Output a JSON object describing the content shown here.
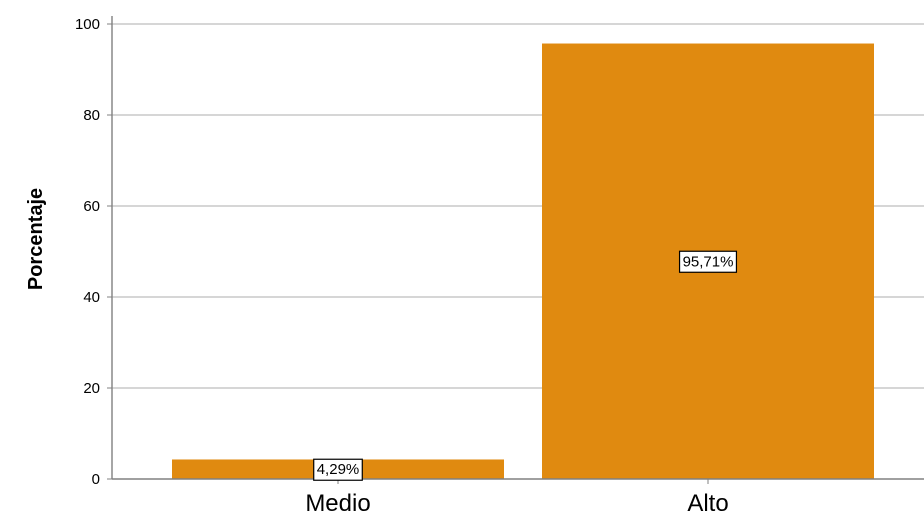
{
  "chart_data": {
    "type": "bar",
    "categories": [
      "Medio",
      "Alto"
    ],
    "values": [
      4.29,
      95.71
    ],
    "data_labels": [
      "4,29%",
      "95,71%"
    ],
    "title": "",
    "xlabel": "",
    "ylabel": "Porcentaje",
    "ylim": [
      0,
      100
    ],
    "yticks": [
      0,
      20,
      40,
      60,
      80,
      100
    ],
    "ytick_labels": [
      "0",
      "20",
      "40",
      "60",
      "80",
      "100"
    ],
    "grid": "horizontal",
    "legend": "none",
    "colors": {
      "bar": "#E08A10",
      "grid": "#C8C8C8",
      "axis": "#808080",
      "label_box_border": "#000000",
      "label_box_fill": "#FFFFFF"
    }
  }
}
